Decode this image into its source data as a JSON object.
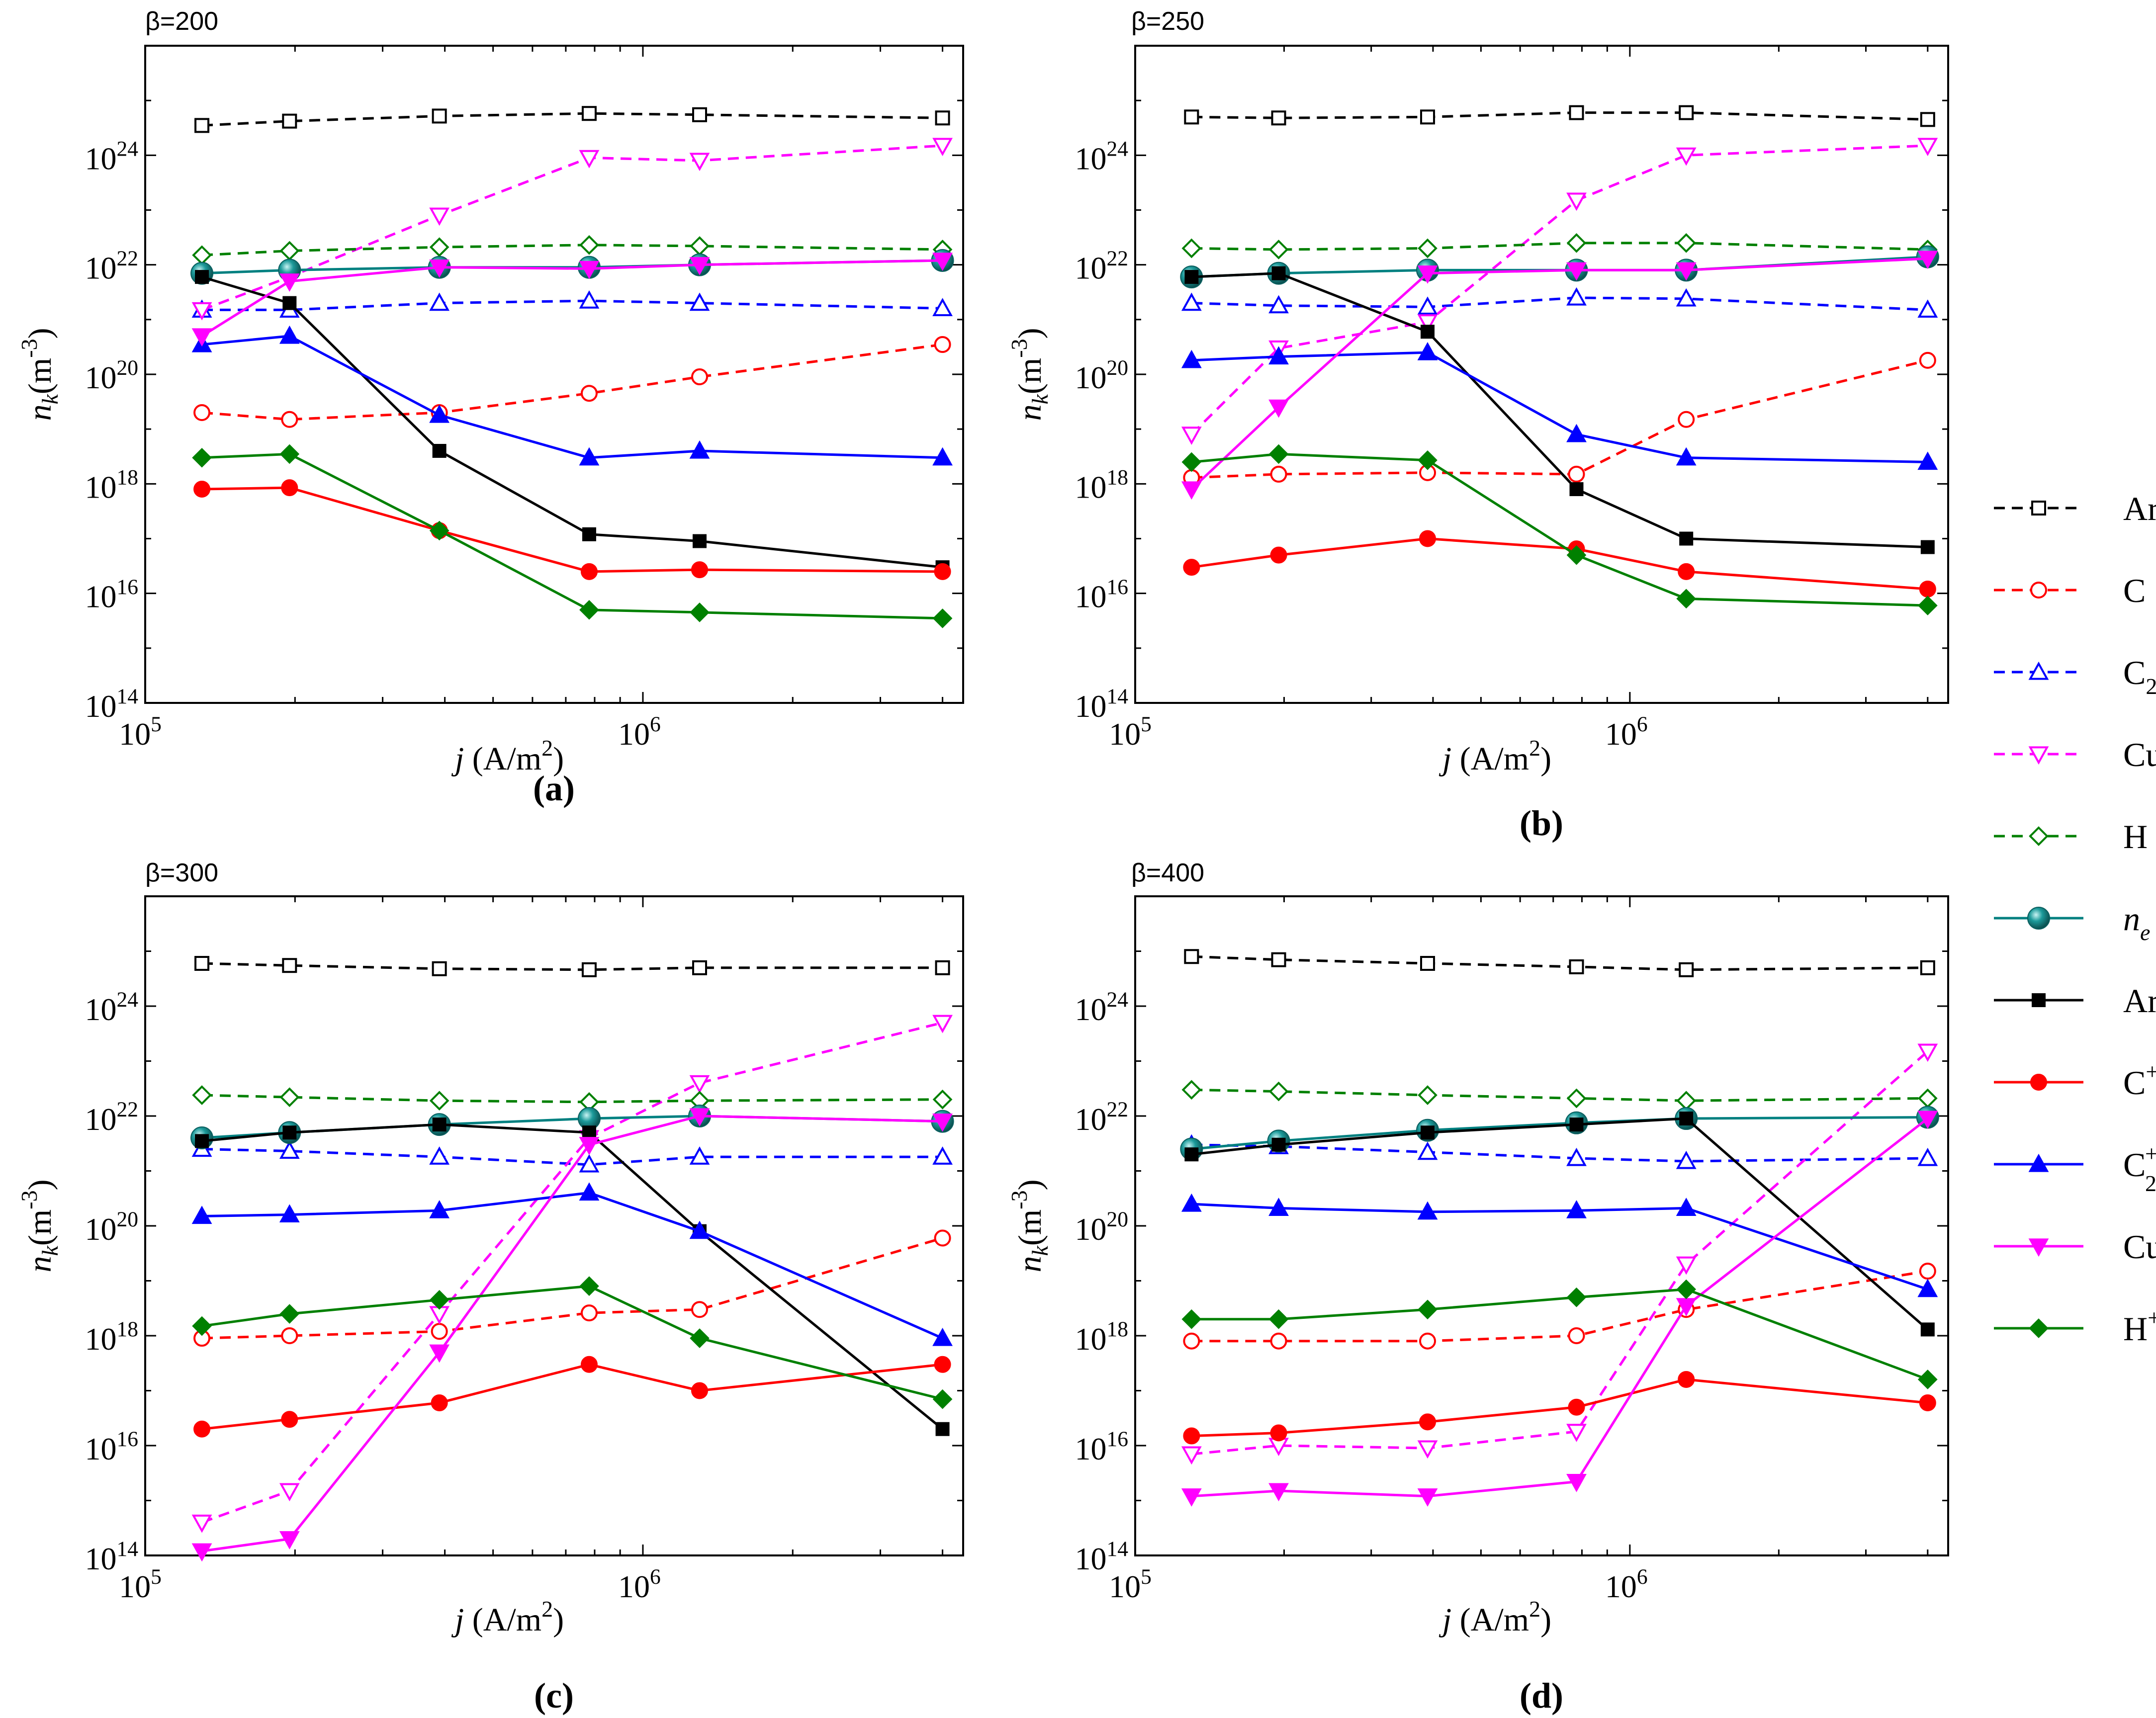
{
  "figure": {
    "species": [
      {
        "key": "Ar",
        "label": "Ar",
        "sup": "",
        "sub": "",
        "color": "#000000",
        "dashed": true,
        "marker": "square",
        "filled": false
      },
      {
        "key": "C",
        "label": "C",
        "sup": "",
        "sub": "",
        "color": "#ff0000",
        "dashed": true,
        "marker": "circle",
        "filled": false
      },
      {
        "key": "C2",
        "label": "C",
        "sup": "",
        "sub": "2",
        "color": "#0000ff",
        "dashed": true,
        "marker": "triangle-up",
        "filled": false
      },
      {
        "key": "Cu",
        "label": "Cu",
        "sup": "",
        "sub": "",
        "color": "#ff00ff",
        "dashed": true,
        "marker": "triangle-down",
        "filled": false
      },
      {
        "key": "H",
        "label": "H",
        "sup": "",
        "sub": "",
        "color": "#008000",
        "dashed": true,
        "marker": "diamond",
        "filled": false
      },
      {
        "key": "ne",
        "label": "n",
        "sup": "",
        "sub": "e",
        "italic": true,
        "color": "#008080",
        "dashed": false,
        "marker": "ball",
        "filled": true
      },
      {
        "key": "Ar+",
        "label": "Ar",
        "sup": "+",
        "sub": "",
        "color": "#000000",
        "dashed": false,
        "marker": "square",
        "filled": true
      },
      {
        "key": "C+",
        "label": "C",
        "sup": "+",
        "sub": "",
        "color": "#ff0000",
        "dashed": false,
        "marker": "circle",
        "filled": true
      },
      {
        "key": "C2+",
        "label": "C",
        "sup": "+",
        "sub": "2",
        "color": "#0000ff",
        "dashed": false,
        "marker": "triangle-up",
        "filled": true
      },
      {
        "key": "Cu+",
        "label": "Cu",
        "sup": "+",
        "sub": "",
        "color": "#ff00ff",
        "dashed": false,
        "marker": "triangle-down",
        "filled": true
      },
      {
        "key": "H+",
        "label": "H",
        "sup": "+",
        "sub": "",
        "color": "#008000",
        "dashed": false,
        "marker": "diamond",
        "filled": true
      }
    ]
  },
  "chart_data": [
    {
      "type": "line",
      "panel_label": "(a)",
      "beta_label": "β=200",
      "xlabel": "j (A/m²)",
      "ylabel": "n_k(m⁻³)",
      "xscale": "log",
      "yscale": "log",
      "xlim": [
        100000,
        4400000
      ],
      "ylim": [
        100000000000000.0,
        1e+26
      ],
      "xticks": [
        "10^5",
        "10^6"
      ],
      "yticks": [
        "10^14",
        "10^16",
        "10^18",
        "10^20",
        "10^22",
        "10^24"
      ],
      "x": [
        130000,
        195000,
        390000,
        780000,
        1300000,
        4000000
      ],
      "series": [
        {
          "name": "Ar",
          "values": [
            3.5e+24,
            4.2e+24,
            5.2e+24,
            5.8e+24,
            5.5e+24,
            4.8e+24
          ]
        },
        {
          "name": "C",
          "values": [
            2e+19,
            1.5e+19,
            2e+19,
            4.5e+19,
            9e+19,
            3.5e+20
          ]
        },
        {
          "name": "C2",
          "values": [
            1.5e+21,
            1.5e+21,
            2e+21,
            2.2e+21,
            2e+21,
            1.6e+21
          ]
        },
        {
          "name": "Cu",
          "values": [
            1.5e+21,
            6e+21,
            8e+22,
            9e+23,
            8e+23,
            1.5e+24
          ]
        },
        {
          "name": "H",
          "values": [
            1.5e+22,
            1.8e+22,
            2.1e+22,
            2.3e+22,
            2.2e+22,
            1.9e+22
          ]
        },
        {
          "name": "ne",
          "values": [
            7e+21,
            8e+21,
            9e+21,
            9e+21,
            1e+22,
            1.2e+22
          ]
        },
        {
          "name": "Ar+",
          "values": [
            6e+21,
            2e+21,
            4e+18,
            1.2e+17,
            9e+16,
            3e+16
          ]
        },
        {
          "name": "C+",
          "values": [
            8e+17,
            8.5e+17,
            1.4e+17,
            2.5e+16,
            2.7e+16,
            2.5e+16
          ]
        },
        {
          "name": "C2+",
          "values": [
            3.5e+20,
            5e+20,
            1.8e+19,
            3e+18,
            4e+18,
            3e+18
          ]
        },
        {
          "name": "Cu+",
          "values": [
            5e+20,
            5e+21,
            9e+21,
            8.5e+21,
            1e+22,
            1.2e+22
          ]
        },
        {
          "name": "H+",
          "values": [
            3e+18,
            3.5e+18,
            1.4e+17,
            5000000000000000.0,
            4500000000000000.0,
            3500000000000000.0
          ]
        }
      ]
    },
    {
      "type": "line",
      "panel_label": "(b)",
      "beta_label": "β=250",
      "xlabel": "j (A/m²)",
      "ylabel": "n_k(m⁻³)",
      "xscale": "log",
      "yscale": "log",
      "xlim": [
        100000,
        4400000
      ],
      "ylim": [
        100000000000000.0,
        1e+26
      ],
      "xticks": [
        "10^5",
        "10^6"
      ],
      "yticks": [
        "10^14",
        "10^16",
        "10^18",
        "10^20",
        "10^22",
        "10^24"
      ],
      "x": [
        130000,
        195000,
        390000,
        780000,
        1300000,
        4000000
      ],
      "series": [
        {
          "name": "Ar",
          "values": [
            5e+24,
            4.8e+24,
            5e+24,
            6e+24,
            6e+24,
            4.5e+24
          ]
        },
        {
          "name": "C",
          "values": [
            1.3e+18,
            1.5e+18,
            1.6e+18,
            1.5e+18,
            1.5e+19,
            1.8e+20
          ]
        },
        {
          "name": "C2",
          "values": [
            2e+21,
            1.8e+21,
            1.7e+21,
            2.5e+21,
            2.4e+21,
            1.5e+21
          ]
        },
        {
          "name": "Cu",
          "values": [
            8e+18,
            3e+20,
            9e+20,
            1.5e+23,
            1e+24,
            1.5e+24
          ]
        },
        {
          "name": "H",
          "values": [
            2e+22,
            1.9e+22,
            2e+22,
            2.5e+22,
            2.5e+22,
            1.9e+22
          ]
        },
        {
          "name": "ne",
          "values": [
            6e+21,
            7e+21,
            8e+21,
            8e+21,
            8e+21,
            1.4e+22
          ]
        },
        {
          "name": "Ar+",
          "values": [
            6e+21,
            7e+21,
            6e+20,
            8e+17,
            1e+17,
            7e+16
          ]
        },
        {
          "name": "C+",
          "values": [
            3e+16,
            5e+16,
            1e+17,
            6.5e+16,
            2.5e+16,
            1.2e+16
          ]
        },
        {
          "name": "C2+",
          "values": [
            1.8e+20,
            2.1e+20,
            2.5e+20,
            8e+18,
            3e+18,
            2.5e+18
          ]
        },
        {
          "name": "Cu+",
          "values": [
            8e+17,
            2.5e+19,
            7e+21,
            8e+21,
            8e+21,
            1.3e+22
          ]
        },
        {
          "name": "H+",
          "values": [
            2.5e+18,
            3.5e+18,
            2.7e+18,
            5e+16,
            8000000000000000.0,
            6000000000000000.0
          ]
        }
      ]
    },
    {
      "type": "line",
      "panel_label": "(c)",
      "beta_label": "β=300",
      "xlabel": "j (A/m²)",
      "ylabel": "n_k(m⁻³)",
      "xscale": "log",
      "yscale": "log",
      "xlim": [
        100000,
        4400000
      ],
      "ylim": [
        100000000000000.0,
        1e+26
      ],
      "xticks": [
        "10^5",
        "10^6"
      ],
      "yticks": [
        "10^14",
        "10^16",
        "10^18",
        "10^20",
        "10^22",
        "10^24"
      ],
      "x": [
        130000,
        195000,
        390000,
        780000,
        1300000,
        4000000
      ],
      "series": [
        {
          "name": "Ar",
          "values": [
            6e+24,
            5.5e+24,
            4.8e+24,
            4.6e+24,
            5e+24,
            5e+24
          ]
        },
        {
          "name": "C",
          "values": [
            9e+17,
            1e+18,
            1.2e+18,
            2.6e+18,
            3e+18,
            6e+19
          ]
        },
        {
          "name": "C2",
          "values": [
            2.5e+21,
            2.3e+21,
            1.8e+21,
            1.3e+21,
            1.8e+21,
            1.8e+21
          ]
        },
        {
          "name": "Cu",
          "values": [
            400000000000000.0,
            1500000000000000.0,
            2.5e+18,
            4e+21,
            4e+22,
            5e+23
          ]
        },
        {
          "name": "H",
          "values": [
            2.4e+22,
            2.2e+22,
            1.9e+22,
            1.8e+22,
            1.9e+22,
            2e+22
          ]
        },
        {
          "name": "ne",
          "values": [
            4e+21,
            5e+21,
            7e+21,
            9e+21,
            1e+22,
            8e+21
          ]
        },
        {
          "name": "Ar+",
          "values": [
            3.5e+21,
            5e+21,
            7e+21,
            5e+21,
            8e+19,
            2e+16
          ]
        },
        {
          "name": "C+",
          "values": [
            2e+16,
            3e+16,
            6e+16,
            3e+17,
            1e+17,
            3e+17
          ]
        },
        {
          "name": "C2+",
          "values": [
            1.5e+20,
            1.6e+20,
            1.9e+20,
            4e+20,
            8e+19,
            9e+17
          ]
        },
        {
          "name": "Cu+",
          "values": [
            120000000000000.0,
            200000000000000.0,
            5e+17,
            3e+21,
            1e+22,
            8e+21
          ]
        },
        {
          "name": "H+",
          "values": [
            1.5e+18,
            2.5e+18,
            4.5e+18,
            8e+18,
            9e+17,
            7e+16
          ]
        }
      ]
    },
    {
      "type": "line",
      "panel_label": "(d)",
      "beta_label": "β=400",
      "xlabel": "j (A/m²)",
      "ylabel": "n_k(m⁻³)",
      "xscale": "log",
      "yscale": "log",
      "xlim": [
        100000,
        4400000
      ],
      "ylim": [
        100000000000000.0,
        1e+26
      ],
      "xticks": [
        "10^5",
        "10^6"
      ],
      "yticks": [
        "10^14",
        "10^16",
        "10^18",
        "10^20",
        "10^22",
        "10^24"
      ],
      "x": [
        130000,
        195000,
        390000,
        780000,
        1300000,
        4000000
      ],
      "series": [
        {
          "name": "Ar",
          "values": [
            8e+24,
            7e+24,
            6e+24,
            5.2e+24,
            4.6e+24,
            5e+24
          ]
        },
        {
          "name": "C",
          "values": [
            8e+17,
            8e+17,
            8e+17,
            1e+18,
            3e+18,
            1.5e+19
          ]
        },
        {
          "name": "C2",
          "values": [
            3e+21,
            2.8e+21,
            2.2e+21,
            1.7e+21,
            1.5e+21,
            1.7e+21
          ]
        },
        {
          "name": "Cu",
          "values": [
            7000000000000000.0,
            1e+16,
            9000000000000000.0,
            1.8e+16,
            2e+19,
            1.5e+23
          ]
        },
        {
          "name": "H",
          "values": [
            3e+22,
            2.8e+22,
            2.4e+22,
            2.1e+22,
            1.9e+22,
            2.1e+22
          ]
        },
        {
          "name": "ne",
          "values": [
            2.5e+21,
            3.5e+21,
            5.5e+21,
            7.5e+21,
            9e+21,
            9.5e+21
          ]
        },
        {
          "name": "Ar+",
          "values": [
            2e+21,
            3e+21,
            5e+21,
            7e+21,
            9e+21,
            1.3e+18
          ]
        },
        {
          "name": "C+",
          "values": [
            1.5e+16,
            1.7e+16,
            2.7e+16,
            5e+16,
            1.6e+17,
            6e+16
          ]
        },
        {
          "name": "C2+",
          "values": [
            2.5e+20,
            2.1e+20,
            1.8e+20,
            1.9e+20,
            2.1e+20,
            7e+18
          ]
        },
        {
          "name": "Cu+",
          "values": [
            1200000000000000.0,
            1500000000000000.0,
            1200000000000000.0,
            2200000000000000.0,
            3.5e+18,
            9e+21
          ]
        },
        {
          "name": "H+",
          "values": [
            2e+18,
            2e+18,
            3e+18,
            5e+18,
            7e+18,
            1.6e+17
          ]
        }
      ]
    }
  ]
}
